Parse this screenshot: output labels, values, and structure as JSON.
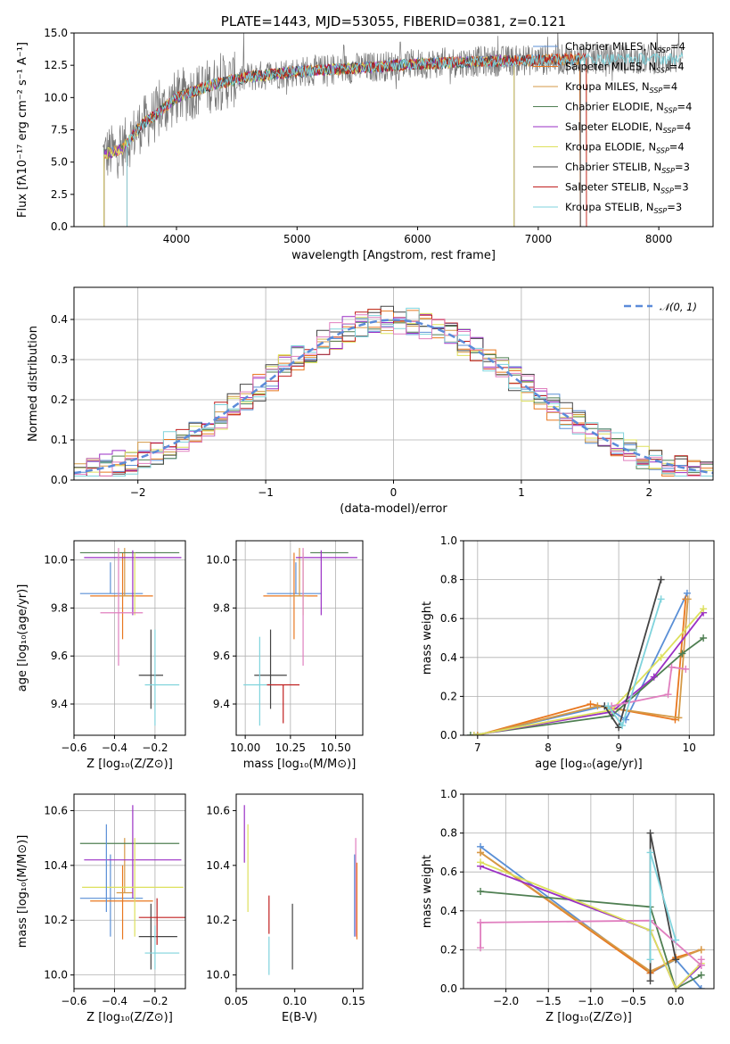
{
  "colors": {
    "chabrier_miles": "#5a8fd6",
    "salpeter_miles": "#e8771f",
    "kroupa_miles": "#d59a47",
    "chabrier_elodie": "#4f7f52",
    "salpeter_elodie": "#9a2fc4",
    "kroupa_elodie": "#dde05c",
    "chabrier_stelib": "#444444",
    "salpeter_stelib": "#c01f1f",
    "kroupa_stelib": "#7fd3dc",
    "pink": "#e07fbf",
    "gray_spec": "#777777",
    "normal_dash": "#5b8bd9"
  },
  "chart_data": [
    {
      "id": "spectrum",
      "type": "line",
      "title": "PLATE=1443, MJD=53055, FIBERID=0381, z=0.121",
      "xlabel": "wavelength [Angstrom, rest frame]",
      "ylabel": "Flux [fλ10⁻¹⁷ erg cm⁻² s⁻¹ A⁻¹]",
      "xlim": [
        3150,
        8450
      ],
      "ylim": [
        0,
        15
      ],
      "xticks": [
        "4000",
        "5000",
        "6000",
        "7000",
        "8000"
      ],
      "yticks": [
        "0.0",
        "2.5",
        "5.0",
        "7.5",
        "10.0",
        "12.5",
        "15.0"
      ],
      "legend_position": "top-right",
      "legend": [
        {
          "text": "Chabrier MILES, N",
          "sub": "SSP",
          "post": "=4"
        },
        {
          "text": "Salpeter MILES, N",
          "sub": "SSP",
          "post": "=4"
        },
        {
          "text": "Kroupa MILES, N",
          "sub": "SSP",
          "post": "=4"
        },
        {
          "text": "Chabrier ELODIE, N",
          "sub": "SSP",
          "post": "=4"
        },
        {
          "text": "Salpeter ELODIE, N",
          "sub": "SSP",
          "post": "=4"
        },
        {
          "text": "Kroupa ELODIE, N",
          "sub": "SSP",
          "post": "=4"
        },
        {
          "text": "Chabrier STELIB, N",
          "sub": "SSP",
          "post": "=3"
        },
        {
          "text": "Salpeter STELIB, N",
          "sub": "SSP",
          "post": "=3"
        },
        {
          "text": "Kroupa STELIB, N",
          "sub": "SSP",
          "post": "=3"
        }
      ],
      "model_trend": {
        "x": [
          3400,
          3550,
          3700,
          3850,
          4000,
          4300,
          4600,
          5000,
          5500,
          6000,
          6500,
          7000,
          7400
        ],
        "y": [
          5.6,
          6.0,
          7.8,
          8.8,
          10.0,
          11.0,
          11.6,
          12.0,
          12.3,
          12.6,
          12.8,
          12.9,
          13.0
        ]
      },
      "model_start_x": [
        3400,
        3400,
        3400,
        3400,
        3400,
        3400,
        3590,
        3590,
        3590
      ],
      "model_end_x": [
        7350,
        7350,
        7400,
        6800,
        6800,
        6800,
        7350,
        7400,
        8200
      ],
      "data_range": [
        3390,
        8200
      ]
    },
    {
      "id": "residuals",
      "type": "step",
      "xlabel": "(data-model)/error",
      "ylabel": "Normed distribution",
      "xlim": [
        -2.5,
        2.5
      ],
      "ylim": [
        0,
        0.48
      ],
      "xticks": [
        "−2",
        "−1",
        "0",
        "1",
        "2"
      ],
      "yticks": [
        "0.0",
        "0.1",
        "0.2",
        "0.3",
        "0.4"
      ],
      "legend": "𝒩(0, 1)",
      "bin_width": 0.1,
      "grid": true
    },
    {
      "id": "age_vs_Z",
      "type": "errorbar",
      "xlabel": "Z [log₁₀(Z/Z⊙)]",
      "ylabel": "age  [log₁₀(age/yr)]",
      "xlim": [
        -0.6,
        -0.05
      ],
      "ylim": [
        9.27,
        10.08
      ],
      "xticks": [
        "−0.6",
        "−0.4",
        "−0.2"
      ],
      "yticks": [
        "9.4",
        "9.6",
        "9.8",
        "10.0"
      ],
      "grid": true,
      "points": [
        {
          "c": "chabrier_miles",
          "x": -0.42,
          "xe": [
            0.15,
            0.16
          ],
          "y": 9.86,
          "ye": [
            0.0,
            0.13
          ]
        },
        {
          "c": "salpeter_miles",
          "x": -0.36,
          "xe": [
            0.16,
            0.15
          ],
          "y": 9.85,
          "ye": [
            0.18,
            0.18
          ]
        },
        {
          "c": "kroupa_miles",
          "x": -0.35,
          "xe": [
            0.04,
            0.04
          ],
          "y": 9.85,
          "ye": [
            0.0,
            0.2
          ]
        },
        {
          "c": "chabrier_elodie",
          "x": -0.28,
          "xe": [
            0.29,
            0.2
          ],
          "y": 10.03,
          "ye": [
            0.0,
            0.0
          ]
        },
        {
          "c": "salpeter_elodie",
          "x": -0.31,
          "xe": [
            0.24,
            0.24
          ],
          "y": 10.01,
          "ye": [
            0.24,
            0.03
          ]
        },
        {
          "c": "kroupa_elodie",
          "x": -0.3,
          "xe": [
            0.0,
            0.0
          ],
          "y": 9.9,
          "ye": [
            0.13,
            0.13
          ]
        },
        {
          "c": "chabrier_stelib",
          "x": -0.22,
          "xe": [
            0.06,
            0.06
          ],
          "y": 9.52,
          "ye": [
            0.14,
            0.19
          ]
        },
        {
          "c": "pink",
          "x": -0.38,
          "xe": [
            0.09,
            0.12
          ],
          "y": 9.78,
          "ye": [
            0.22,
            0.27
          ]
        },
        {
          "c": "kroupa_stelib",
          "x": -0.2,
          "xe": [
            0.05,
            0.12
          ],
          "y": 9.48,
          "ye": [
            0.17,
            0.23
          ]
        }
      ]
    },
    {
      "id": "age_vs_mass",
      "type": "errorbar",
      "xlabel": "mass [log₁₀(M/M⊙)]",
      "ylabel": "",
      "xlim": [
        9.95,
        10.65
      ],
      "ylim": [
        9.27,
        10.08
      ],
      "xticks": [
        "10.00",
        "10.25",
        "10.50"
      ],
      "yticks": [
        "9.4",
        "9.6",
        "9.8",
        "10.0"
      ],
      "grid": true,
      "points": [
        {
          "c": "chabrier_miles",
          "x": 10.28,
          "xe": [
            0.16,
            0.14
          ],
          "y": 9.86,
          "ye": [
            0.0,
            0.13
          ]
        },
        {
          "c": "salpeter_miles",
          "x": 10.27,
          "xe": [
            0.17,
            0.13
          ],
          "y": 9.85,
          "ye": [
            0.18,
            0.18
          ]
        },
        {
          "c": "kroupa_miles",
          "x": 10.3,
          "xe": [
            0.04,
            0.04
          ],
          "y": 9.85,
          "ye": [
            0.0,
            0.2
          ]
        },
        {
          "c": "chabrier_elodie",
          "x": 10.48,
          "xe": [
            0.12,
            0.09
          ],
          "y": 10.03,
          "ye": [
            0.0,
            0.0
          ]
        },
        {
          "c": "salpeter_elodie",
          "x": 10.42,
          "xe": [
            0.14,
            0.2
          ],
          "y": 10.01,
          "ye": [
            0.24,
            0.03
          ]
        },
        {
          "c": "kroupa_elodie",
          "x": 10.32,
          "xe": [
            0.0,
            0.0
          ],
          "y": 9.9,
          "ye": [
            0.13,
            0.13
          ]
        },
        {
          "c": "chabrier_stelib",
          "x": 10.14,
          "xe": [
            0.09,
            0.09
          ],
          "y": 9.52,
          "ye": [
            0.14,
            0.19
          ]
        },
        {
          "c": "pink",
          "x": 10.32,
          "xe": [
            0.0,
            0.0
          ],
          "y": 9.78,
          "ye": [
            0.22,
            0.27
          ]
        },
        {
          "c": "kroupa_stelib",
          "x": 10.08,
          "xe": [
            0.09,
            0.09
          ],
          "y": 9.48,
          "ye": [
            0.17,
            0.2
          ]
        },
        {
          "c": "salpeter_stelib",
          "x": 10.21,
          "xe": [
            0.09,
            0.09
          ],
          "y": 9.48,
          "ye": [
            0.16,
            0.0
          ]
        }
      ]
    },
    {
      "id": "massweight_vs_age",
      "type": "line",
      "xlabel": "age  [log₁₀(age/yr)]",
      "ylabel": "mass weight",
      "xlim": [
        6.8,
        10.35
      ],
      "ylim": [
        0,
        1.0
      ],
      "xticks": [
        "7",
        "8",
        "9",
        "10"
      ],
      "yticks": [
        "0.0",
        "0.2",
        "0.4",
        "0.6",
        "0.8",
        "1.0"
      ],
      "grid": true,
      "series": [
        {
          "c": "chabrier_miles",
          "x": [
            7.0,
            8.8,
            9.1,
            9.97
          ],
          "y": [
            0.0,
            0.15,
            0.08,
            0.73
          ]
        },
        {
          "c": "salpeter_miles",
          "x": [
            7.0,
            8.6,
            9.8,
            9.95
          ],
          "y": [
            0.0,
            0.16,
            0.08,
            0.7
          ]
        },
        {
          "c": "kroupa_miles",
          "x": [
            7.0,
            8.7,
            9.85,
            9.98
          ],
          "y": [
            0.0,
            0.15,
            0.09,
            0.7
          ]
        },
        {
          "c": "chabrier_elodie",
          "x": [
            6.9,
            8.9,
            9.9,
            10.2
          ],
          "y": [
            0.0,
            0.1,
            0.42,
            0.5
          ]
        },
        {
          "c": "salpeter_elodie",
          "x": [
            6.95,
            8.9,
            9.5,
            10.2
          ],
          "y": [
            0.0,
            0.12,
            0.3,
            0.63
          ]
        },
        {
          "c": "kroupa_elodie",
          "x": [
            6.95,
            8.9,
            9.6,
            10.2
          ],
          "y": [
            0.0,
            0.13,
            0.4,
            0.65
          ]
        },
        {
          "c": "chabrier_stelib",
          "x": [
            8.8,
            9.0,
            9.6
          ],
          "y": [
            0.15,
            0.04,
            0.8
          ]
        },
        {
          "c": "pink",
          "x": [
            8.9,
            9.7,
            9.75,
            9.95
          ],
          "y": [
            0.15,
            0.21,
            0.35,
            0.34
          ]
        },
        {
          "c": "kroupa_stelib",
          "x": [
            8.85,
            9.05,
            9.6
          ],
          "y": [
            0.15,
            0.05,
            0.7
          ]
        }
      ]
    },
    {
      "id": "mass_vs_Z",
      "type": "errorbar",
      "xlabel": "Z [log₁₀(Z/Z⊙)]",
      "ylabel": "mass [log₁₀(M/M⊙)]",
      "xlim": [
        -0.6,
        -0.05
      ],
      "ylim": [
        9.95,
        10.66
      ],
      "xticks": [
        "−0.6",
        "−0.4",
        "−0.2"
      ],
      "yticks": [
        "10.0",
        "10.2",
        "10.4",
        "10.6"
      ],
      "grid": true,
      "points": [
        {
          "c": "chabrier_miles",
          "x": -0.42,
          "xe": [
            0.15,
            0.16
          ],
          "y": 10.28,
          "ye": [
            0.14,
            0.16
          ]
        },
        {
          "c": "salpeter_miles",
          "x": -0.36,
          "xe": [
            0.16,
            0.15
          ],
          "y": 10.27,
          "ye": [
            0.14,
            0.13
          ]
        },
        {
          "c": "kroupa_miles",
          "x": -0.35,
          "xe": [
            0.04,
            0.04
          ],
          "y": 10.3,
          "ye": [
            0.0,
            0.2
          ]
        },
        {
          "c": "chabrier_elodie",
          "x": -0.28,
          "xe": [
            0.29,
            0.2
          ],
          "y": 10.48,
          "ye": [
            0.0,
            0.0
          ]
        },
        {
          "c": "salpeter_elodie",
          "x": -0.31,
          "xe": [
            0.24,
            0.24
          ],
          "y": 10.42,
          "ye": [
            0.14,
            0.2
          ]
        },
        {
          "c": "kroupa_elodie",
          "x": -0.3,
          "xe": [
            0.26,
            0.24
          ],
          "y": 10.32,
          "ye": [
            0.18,
            0.18
          ]
        },
        {
          "c": "chabrier_stelib",
          "x": -0.22,
          "xe": [
            0.06,
            0.13
          ],
          "y": 10.14,
          "ye": [
            0.12,
            0.12
          ]
        },
        {
          "c": "salpeter_stelib",
          "x": -0.19,
          "xe": [
            0.09,
            0.14
          ],
          "y": 10.21,
          "ye": [
            0.1,
            0.07
          ]
        },
        {
          "c": "kroupa_stelib",
          "x": -0.2,
          "xe": [
            0.05,
            0.12
          ],
          "y": 10.08,
          "ye": [
            0.06,
            0.1
          ]
        },
        {
          "c": "chabrier_miles_b",
          "x": -0.44,
          "xe": [
            0.0,
            0.0
          ],
          "y": 10.39,
          "ye": [
            0.16,
            0.16
          ]
        }
      ]
    },
    {
      "id": "mass_vs_EBV",
      "type": "errorbar",
      "xlabel": "E(B-V)",
      "ylabel": "",
      "xlim": [
        0.05,
        0.158
      ],
      "ylim": [
        9.95,
        10.66
      ],
      "xticks": [
        "0.05",
        "0.10",
        "0.15"
      ],
      "yticks": [
        "10.0",
        "10.2",
        "10.4",
        "10.6"
      ],
      "grid": false,
      "points": [
        {
          "c": "salpeter_elodie",
          "x": 0.057,
          "ye": [
            0.07,
            0.14
          ],
          "y": 10.48
        },
        {
          "c": "kroupa_elodie",
          "x": 0.06,
          "ye": [
            0.16,
            0.16
          ],
          "y": 10.39
        },
        {
          "c": "chabrier_stelib",
          "x": 0.098,
          "ye": [
            0.12,
            0.12
          ],
          "y": 10.14
        },
        {
          "c": "salpeter_stelib",
          "x": 0.078,
          "ye": [
            0.06,
            0.08
          ],
          "y": 10.21
        },
        {
          "c": "kroupa_stelib",
          "x": 0.078,
          "ye": [
            0.08,
            0.06
          ],
          "y": 10.08
        },
        {
          "c": "chabrier_miles",
          "x": 0.151,
          "ye": [
            0.14,
            0.16
          ],
          "y": 10.28
        },
        {
          "c": "pink",
          "x": 0.152,
          "ye": [
            0.14,
            0.22
          ],
          "y": 10.28
        },
        {
          "c": "salpeter_miles",
          "x": 0.153,
          "ye": [
            0.14,
            0.14
          ],
          "y": 10.27
        }
      ]
    },
    {
      "id": "massweight_vs_Z",
      "type": "line",
      "xlabel": "Z [log₁₀(Z/Z⊙)]",
      "ylabel": "mass weight",
      "xlim": [
        -2.5,
        0.45
      ],
      "ylim": [
        0,
        1.0
      ],
      "xticks": [
        "−2.0",
        "−1.5",
        "−1.0",
        "−0.5",
        "0.0"
      ],
      "yticks": [
        "0.0",
        "0.2",
        "0.4",
        "0.6",
        "0.8",
        "1.0"
      ],
      "grid": true,
      "series": [
        {
          "c": "chabrier_miles",
          "x": [
            -2.3,
            -0.3,
            0.0,
            0.3
          ],
          "y": [
            0.73,
            0.08,
            0.15,
            0.0
          ]
        },
        {
          "c": "salpeter_miles",
          "x": [
            -2.3,
            -0.3,
            0.0,
            0.3
          ],
          "y": [
            0.7,
            0.08,
            0.16,
            0.2
          ]
        },
        {
          "c": "kroupa_miles",
          "x": [
            -2.3,
            -0.3,
            0.0,
            0.3
          ],
          "y": [
            0.7,
            0.09,
            0.15,
            0.2
          ]
        },
        {
          "c": "chabrier_elodie",
          "x": [
            -2.3,
            -0.3,
            0.0,
            0.3
          ],
          "y": [
            0.5,
            0.42,
            0.0,
            0.07
          ]
        },
        {
          "c": "salpeter_elodie",
          "x": [
            -2.3,
            -0.3,
            0.0,
            0.3
          ],
          "y": [
            0.63,
            0.3,
            0.0,
            0.12
          ]
        },
        {
          "c": "kroupa_elodie",
          "x": [
            -2.3,
            -0.3,
            0.0,
            0.3
          ],
          "y": [
            0.65,
            0.3,
            0.0,
            0.13
          ]
        },
        {
          "c": "chabrier_stelib",
          "x": [
            -0.3,
            -0.3,
            0.0
          ],
          "y": [
            0.04,
            0.8,
            0.15
          ]
        },
        {
          "c": "pink",
          "x": [
            -2.3,
            -2.3,
            -0.3,
            0.3,
            0.3
          ],
          "y": [
            0.21,
            0.34,
            0.35,
            0.12,
            0.15
          ]
        },
        {
          "c": "kroupa_stelib",
          "x": [
            -0.3,
            -0.3,
            0.0
          ],
          "y": [
            0.15,
            0.7,
            0.25
          ]
        }
      ]
    }
  ]
}
